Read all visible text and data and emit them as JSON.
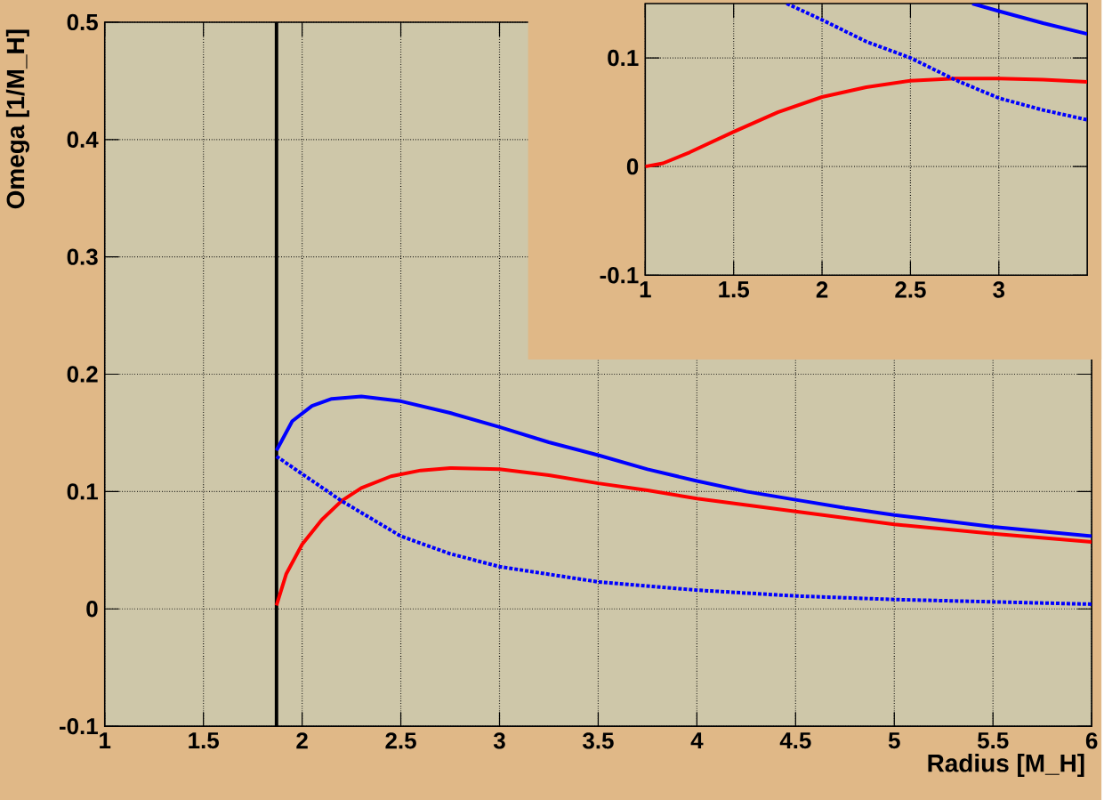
{
  "chart_data": [
    {
      "type": "line",
      "xlabel": "Radius [M_H]",
      "ylabel": "Omega [1/M_H]",
      "xlim": [
        1,
        6
      ],
      "ylim": [
        -0.1,
        0.5
      ],
      "xticks": [
        1,
        1.5,
        2,
        2.5,
        3,
        3.5,
        4,
        4.5,
        5,
        5.5,
        6
      ],
      "yticks": [
        -0.1,
        0,
        0.1,
        0.2,
        0.3,
        0.4,
        0.5
      ],
      "grid": true,
      "ref_lines": [
        {
          "axis": "x",
          "value": 1.87,
          "color": "#000000"
        }
      ],
      "series": [
        {
          "color": "#0000ff",
          "line_style": "solid",
          "x": [
            1.87,
            1.95,
            2.05,
            2.15,
            2.3,
            2.5,
            2.75,
            3,
            3.25,
            3.5,
            3.75,
            4,
            4.25,
            4.5,
            4.75,
            5,
            5.25,
            5.5,
            5.75,
            6
          ],
          "values": [
            0.135,
            0.16,
            0.173,
            0.179,
            0.181,
            0.177,
            0.167,
            0.155,
            0.142,
            0.131,
            0.119,
            0.109,
            0.1,
            0.093,
            0.086,
            0.08,
            0.075,
            0.07,
            0.066,
            0.062
          ]
        },
        {
          "color": "#ff0000",
          "line_style": "solid",
          "x": [
            1.87,
            1.92,
            2,
            2.1,
            2.2,
            2.3,
            2.45,
            2.6,
            2.75,
            3,
            3.25,
            3.5,
            3.75,
            4,
            4.5,
            5,
            5.5,
            6
          ],
          "values": [
            0.003,
            0.03,
            0.055,
            0.076,
            0.092,
            0.103,
            0.113,
            0.118,
            0.12,
            0.119,
            0.114,
            0.107,
            0.101,
            0.094,
            0.083,
            0.072,
            0.064,
            0.057
          ]
        },
        {
          "color": "#0000ff",
          "line_style": "dotted",
          "x": [
            1.87,
            2,
            2.2,
            2.5,
            2.75,
            3,
            3.5,
            4,
            4.5,
            5,
            5.5,
            6
          ],
          "values": [
            0.13,
            0.115,
            0.092,
            0.062,
            0.047,
            0.036,
            0.023,
            0.016,
            0.011,
            0.008,
            0.006,
            0.004
          ]
        }
      ]
    },
    {
      "type": "line",
      "xlim": [
        1,
        3.5
      ],
      "ylim": [
        -0.1,
        0.15
      ],
      "xticks": [
        1,
        1.5,
        2,
        2.5,
        3
      ],
      "yticks": [
        -0.1,
        0,
        0.1
      ],
      "grid": true,
      "series": [
        {
          "color": "#0000ff",
          "line_style": "solid",
          "x": [
            2.85,
            3,
            3.25,
            3.5
          ],
          "values": [
            0.15,
            0.143,
            0.132,
            0.122
          ]
        },
        {
          "color": "#ff0000",
          "line_style": "solid",
          "x": [
            1,
            1.1,
            1.25,
            1.5,
            1.75,
            2,
            2.25,
            2.5,
            2.75,
            3,
            3.25,
            3.5
          ],
          "values": [
            0,
            0.003,
            0.013,
            0.032,
            0.05,
            0.064,
            0.073,
            0.079,
            0.081,
            0.081,
            0.08,
            0.078
          ]
        },
        {
          "color": "#0000ff",
          "line_style": "dotted",
          "x": [
            1.8,
            2,
            2.25,
            2.5,
            2.75,
            3,
            3.25,
            3.5
          ],
          "values": [
            0.15,
            0.135,
            0.115,
            0.1,
            0.08,
            0.063,
            0.052,
            0.043
          ]
        }
      ]
    }
  ]
}
